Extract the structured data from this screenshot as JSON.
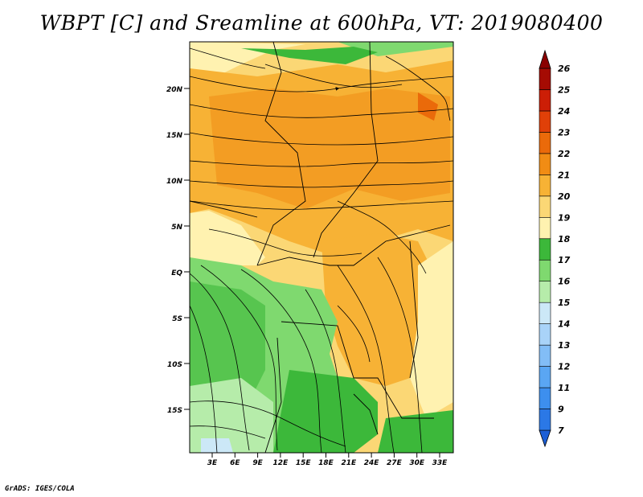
{
  "title": "WBPT [C] and Sreamline at 600hPa, VT: 2019080400",
  "credit": "GrADS: IGES/COLA",
  "map": {
    "lat_labels": [
      "20N",
      "15N",
      "10N",
      "5N",
      "EQ",
      "5S",
      "10S",
      "15S"
    ],
    "lon_labels": [
      "3E",
      "6E",
      "9E",
      "12E",
      "15E",
      "18E",
      "21E",
      "24E",
      "27E",
      "30E",
      "33E"
    ]
  },
  "colorbar": {
    "levels": [
      "7",
      "9",
      "11",
      "12",
      "13",
      "14",
      "15",
      "16",
      "17",
      "18",
      "19",
      "20",
      "21",
      "22",
      "23",
      "24",
      "25",
      "26"
    ],
    "colors": [
      "#1c5fd6",
      "#2b78e6",
      "#3d8fee",
      "#5aa6f3",
      "#82bdf6",
      "#a9d3f8",
      "#cce8f7",
      "#b6ecaa",
      "#7fd96f",
      "#3cb83a",
      "#fff2b0",
      "#fbd775",
      "#f7b235",
      "#f18c14",
      "#ea6a0a",
      "#e04008",
      "#cc1e06",
      "#a50b03",
      "#8a0000"
    ]
  }
}
